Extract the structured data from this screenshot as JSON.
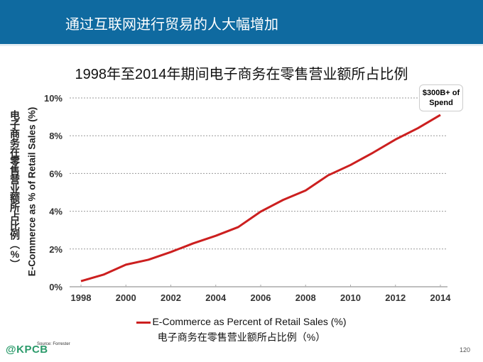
{
  "header": {
    "title": "通过互联网进行贸易的人大幅增加"
  },
  "chart_data": {
    "type": "line",
    "title": "1998年至2014年期间电子商务在零售营业额所占比例",
    "ylabel_cn": "电子商务在零售营业额所占比例（%）",
    "ylabel": "E-Commerce as % of Retail Sales (%)",
    "xlabel": "",
    "x": [
      1998,
      1999,
      2000,
      2001,
      2002,
      2003,
      2004,
      2005,
      2006,
      2007,
      2008,
      2009,
      2010,
      2011,
      2012,
      2013,
      2014
    ],
    "series": [
      {
        "name": "E-Commerce as Percent of Retail Sales (%)",
        "name_cn": "电子商务在零售营业额所占比例（%）",
        "color": "#cc1f1f",
        "values": [
          0.3,
          0.64,
          1.17,
          1.43,
          1.84,
          2.3,
          2.7,
          3.16,
          3.98,
          4.6,
          5.1,
          5.9,
          6.45,
          7.1,
          7.8,
          8.4,
          9.1
        ]
      }
    ],
    "xticks": [
      "1998",
      "2000",
      "2002",
      "2004",
      "2006",
      "2008",
      "2010",
      "2012",
      "2014"
    ],
    "yticks": [
      "0%",
      "2%",
      "4%",
      "6%",
      "8%",
      "10%"
    ],
    "ylim": [
      0,
      10
    ],
    "xlim": [
      1998,
      2014
    ],
    "grid": "horizontal dotted",
    "legend": "bottom",
    "annotation": {
      "line1": "$300B+ of",
      "line2": "Spend"
    }
  },
  "footer": {
    "logo": "@KPCB",
    "source": "Source: Forrester",
    "page": "120"
  }
}
